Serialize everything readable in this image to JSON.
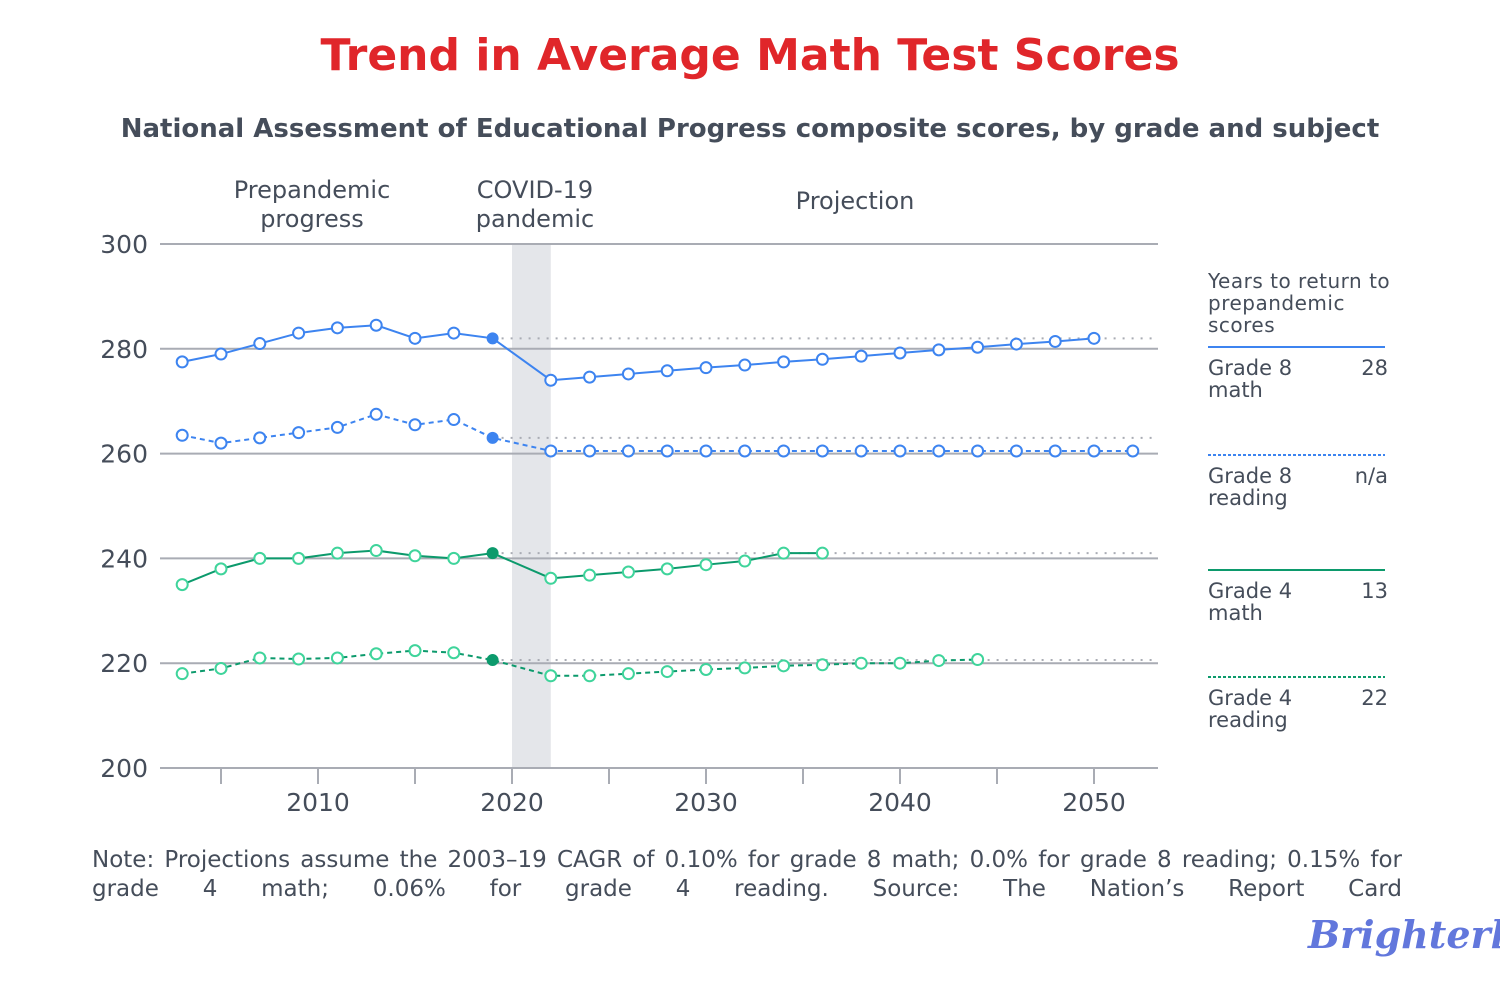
{
  "chart_data": {
    "type": "line",
    "title": "Trend in Average Math Test Scores",
    "subtitle": "National Assessment of Educational Progress composite scores, by grade and subject",
    "period_labels": [
      "Prepandemic progress",
      "COVID-19 pandemic",
      "Projection"
    ],
    "pandemic_band": [
      2020,
      2022
    ],
    "ylim": [
      200,
      300
    ],
    "yticks": [
      200,
      220,
      240,
      260,
      280,
      300
    ],
    "xlim": [
      2002,
      2054
    ],
    "xticks": [
      2010,
      2020,
      2030,
      2040,
      2050
    ],
    "grid": "horizontal",
    "series": [
      {
        "name": "Grade 8 math",
        "style": "solid",
        "color": "#3d84f0",
        "marker": "#3d84f0",
        "years_to_return": "28",
        "prepandemic": 282,
        "x": [
          2003,
          2005,
          2007,
          2009,
          2011,
          2013,
          2015,
          2017,
          2019,
          2022,
          2024,
          2026,
          2028,
          2030,
          2032,
          2034,
          2036,
          2038,
          2040,
          2042,
          2044,
          2046,
          2048,
          2050
        ],
        "y": [
          277.5,
          279,
          281,
          283,
          284,
          284.5,
          282,
          283,
          282,
          274,
          274.6,
          275.2,
          275.8,
          276.4,
          276.9,
          277.5,
          278,
          278.6,
          279.2,
          279.8,
          280.3,
          280.9,
          281.4,
          282
        ]
      },
      {
        "name": "Grade 8 reading",
        "style": "dashed",
        "color": "#3d84f0",
        "marker": "#3d84f0",
        "years_to_return": "n/a",
        "prepandemic": 263,
        "x": [
          2003,
          2005,
          2007,
          2009,
          2011,
          2013,
          2015,
          2017,
          2019,
          2022,
          2024,
          2026,
          2028,
          2030,
          2032,
          2034,
          2036,
          2038,
          2040,
          2042,
          2044,
          2046,
          2048,
          2050,
          2052
        ],
        "y": [
          263.5,
          262,
          263,
          264,
          265,
          267.5,
          265.5,
          266.5,
          263,
          260.5,
          260.5,
          260.5,
          260.5,
          260.5,
          260.5,
          260.5,
          260.5,
          260.5,
          260.5,
          260.5,
          260.5,
          260.5,
          260.5,
          260.5,
          260.5
        ]
      },
      {
        "name": "Grade 4 math",
        "style": "solid",
        "color": "#0c9a6c",
        "marker": "#3fd49b",
        "years_to_return": "13",
        "prepandemic": 241,
        "x": [
          2003,
          2005,
          2007,
          2009,
          2011,
          2013,
          2015,
          2017,
          2019,
          2022,
          2024,
          2026,
          2028,
          2030,
          2032,
          2034,
          2036
        ],
        "y": [
          235,
          238,
          240,
          240,
          241,
          241.5,
          240.5,
          240,
          241,
          236.2,
          236.8,
          237.4,
          238,
          238.8,
          239.5,
          241,
          241
        ]
      },
      {
        "name": "Grade 4 reading",
        "style": "dashed",
        "color": "#0c9a6c",
        "marker": "#3fd49b",
        "years_to_return": "22",
        "prepandemic": 220.6,
        "x": [
          2003,
          2005,
          2007,
          2009,
          2011,
          2013,
          2015,
          2017,
          2019,
          2022,
          2024,
          2026,
          2028,
          2030,
          2032,
          2034,
          2036,
          2038,
          2040,
          2042,
          2044
        ],
        "y": [
          218,
          219,
          221,
          220.8,
          221,
          221.8,
          222.4,
          222,
          220.6,
          217.6,
          217.6,
          218,
          218.4,
          218.8,
          219.1,
          219.5,
          219.7,
          220,
          220,
          220.5,
          220.7
        ]
      }
    ],
    "legend": {
      "title": "Years to return to prepandemic scores",
      "placement": "right",
      "items": [
        {
          "l1": "Grade 8",
          "l2": "math",
          "v": "28"
        },
        {
          "l1": "Grade 8",
          "l2": "reading",
          "v": "n/a"
        },
        {
          "l1": "Grade 4",
          "l2": "math",
          "v": "13"
        },
        {
          "l1": "Grade 4",
          "l2": "reading",
          "v": "22"
        }
      ]
    }
  },
  "note": "Note: Projections assume the 2003–19 CAGR of 0.10% for grade 8 math; 0.0% for grade 8 reading; 0.15% for grade 4 math; 0.06% for grade 4 reading. Source: The Nation’s Report Card",
  "logo": "Brighterly"
}
